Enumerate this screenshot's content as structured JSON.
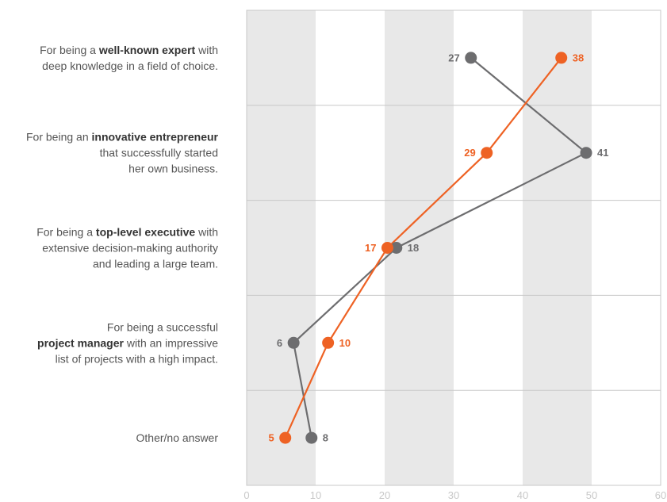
{
  "chart_data": {
    "type": "line",
    "title": "",
    "xlabel": "",
    "ylabel": "",
    "xlim": [
      0,
      60
    ],
    "x_ticks": [
      "0",
      "10",
      "20",
      "30",
      "40",
      "50",
      "60"
    ],
    "categories": [
      {
        "lines": [
          [
            {
              "t": "For being a ",
              "b": false
            },
            {
              "t": "well-known expert",
              "b": true
            },
            {
              "t": " with",
              "b": false
            }
          ],
          [
            {
              "t": "deep knowledge in a field of choice.",
              "b": false
            }
          ]
        ]
      },
      {
        "lines": [
          [
            {
              "t": "For being an ",
              "b": false
            },
            {
              "t": "innovative entrepreneur",
              "b": true
            }
          ],
          [
            {
              "t": "that successfully started",
              "b": false
            }
          ],
          [
            {
              "t": "her own business.",
              "b": false
            }
          ]
        ]
      },
      {
        "lines": [
          [
            {
              "t": "For being a ",
              "b": false
            },
            {
              "t": "top-level executive",
              "b": true
            },
            {
              "t": " with",
              "b": false
            }
          ],
          [
            {
              "t": "extensive decision-making authority",
              "b": false
            }
          ],
          [
            {
              "t": "and leading a large team.",
              "b": false
            }
          ]
        ]
      },
      {
        "lines": [
          [
            {
              "t": "For being a successful",
              "b": false
            }
          ],
          [
            {
              "t": "project manager",
              "b": true
            },
            {
              "t": " with an impressive",
              "b": false
            }
          ],
          [
            {
              "t": "list of projects with a high impact.",
              "b": false
            }
          ]
        ]
      },
      {
        "lines": [
          [
            {
              "t": "Other/no answer",
              "b": false
            }
          ]
        ]
      }
    ],
    "series": [
      {
        "color": "#6d6d6f",
        "x": [
          32.5,
          49.2,
          21.7,
          6.8,
          9.4
        ],
        "labels": [
          "27",
          "41",
          "18",
          "6",
          "8"
        ],
        "label_side": [
          "left",
          "right",
          "right",
          "left",
          "right"
        ]
      },
      {
        "color": "#ee6224",
        "x": [
          45.6,
          34.8,
          20.4,
          11.8,
          5.6
        ],
        "labels": [
          "38",
          "29",
          "17",
          "10",
          "5"
        ],
        "label_side": [
          "right",
          "left",
          "left",
          "right",
          "left"
        ]
      }
    ],
    "shaded_bands_x": [
      [
        0,
        10
      ],
      [
        20,
        30
      ],
      [
        40,
        50
      ]
    ],
    "grid": true
  }
}
